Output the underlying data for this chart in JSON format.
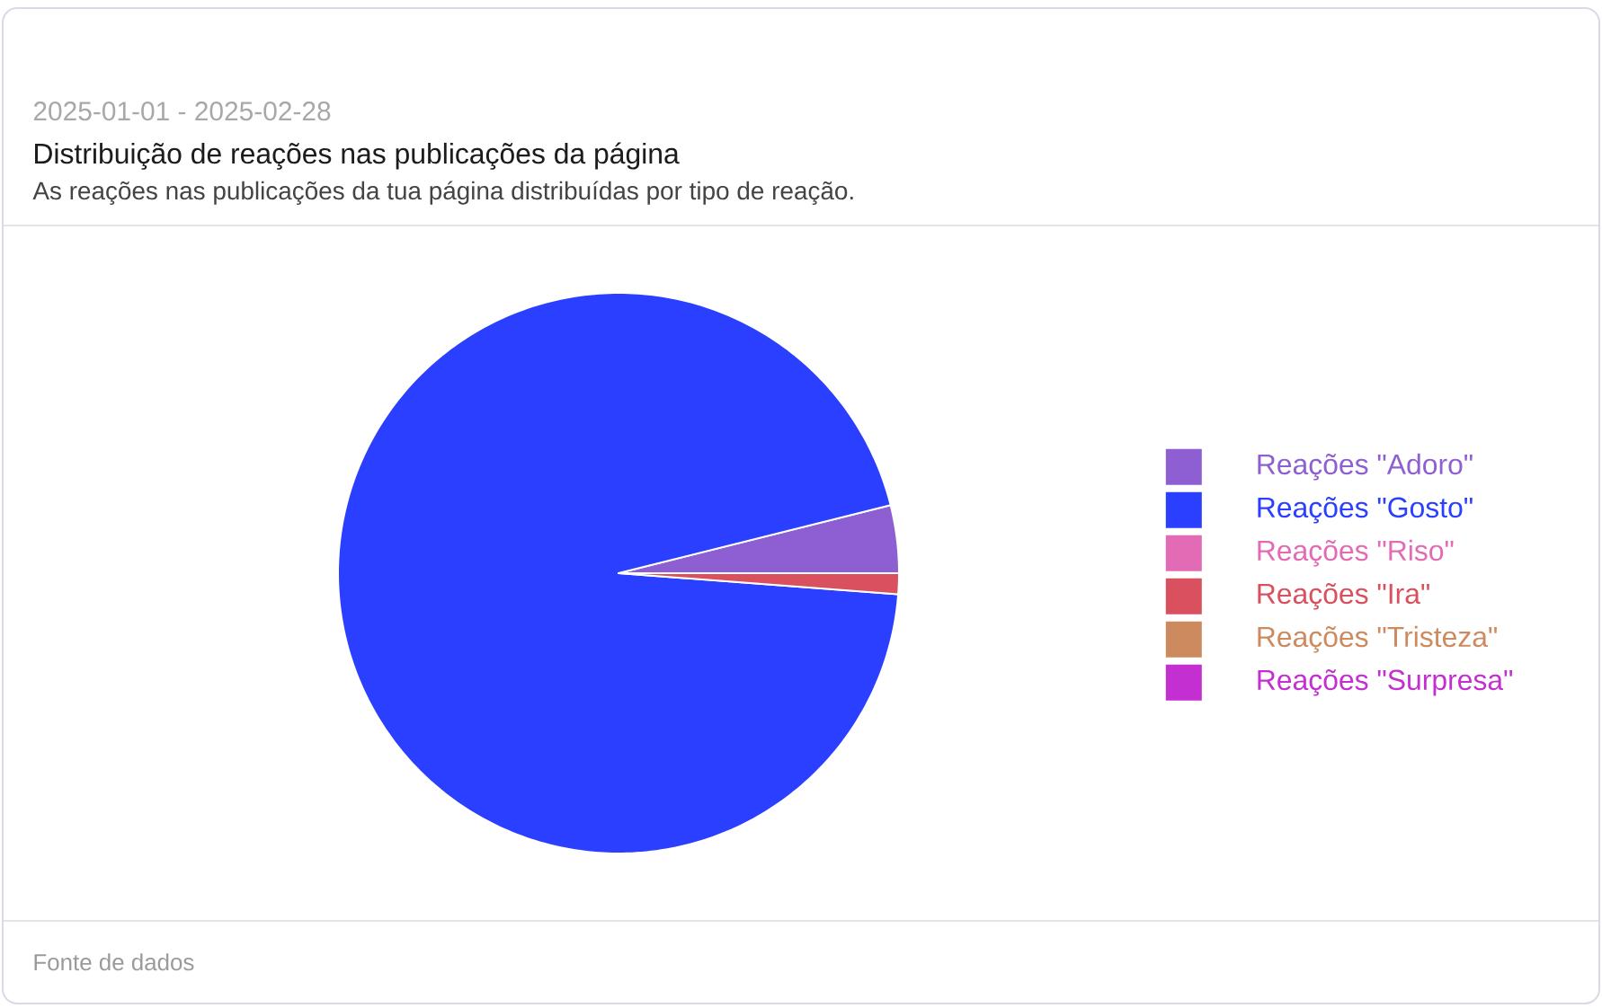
{
  "chart_data": {
    "type": "pie",
    "title": "Distribuição de reações nas publicações da página",
    "subtitle": "As reações nas publicações da tua página distribuídas por tipo de reação.",
    "annotations": [
      "2025-01-01 - 2025-02-28",
      "Fonte de dados"
    ],
    "categories": [
      "Reações \"Adoro\"",
      "Reações \"Gosto\"",
      "Reações \"Riso\"",
      "Reações \"Ira\"",
      "Reações \"Tristeza\"",
      "Reações \"Surpresa\""
    ],
    "values": [
      3.9,
      94.9,
      0,
      1.2,
      0,
      0
    ],
    "colors": [
      "#8e5fd3",
      "#2a3fff",
      "#e36bb5",
      "#d9505e",
      "#cd8a5e",
      "#c32fd1"
    ],
    "legend": "right"
  }
}
